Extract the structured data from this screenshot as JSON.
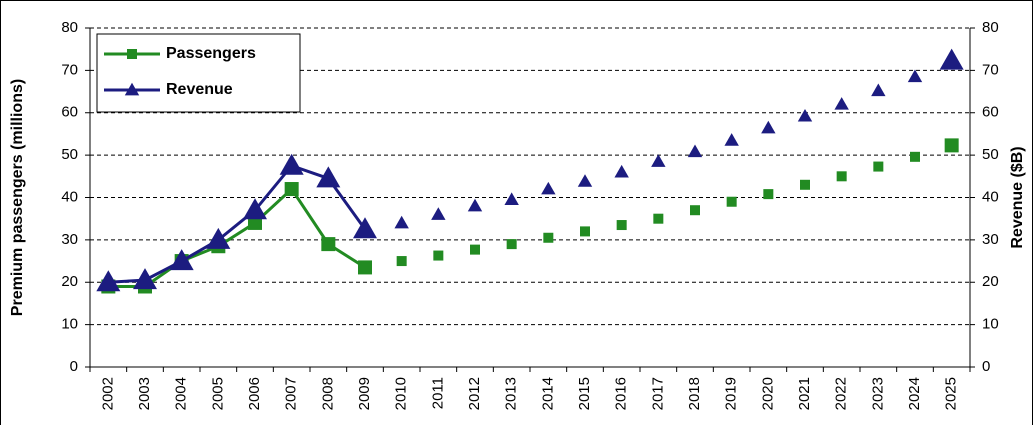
{
  "chart_data": {
    "type": "line",
    "categories": [
      "2002",
      "2003",
      "2004",
      "2005",
      "2006",
      "2007",
      "2008",
      "2009",
      "2010",
      "2011",
      "2012",
      "2013",
      "2014",
      "2015",
      "2016",
      "2017",
      "2018",
      "2019",
      "2020",
      "2021",
      "2022",
      "2023",
      "2024",
      "2025"
    ],
    "series": [
      {
        "name": "Passengers",
        "color": "#228b22",
        "marker": "square",
        "solid_through": "2009",
        "values": [
          19,
          19,
          25,
          28.5,
          34,
          42,
          29,
          23.5,
          25,
          26.3,
          27.7,
          29,
          30.5,
          32,
          33.5,
          35,
          37,
          39,
          40.8,
          43,
          45,
          47.3,
          49.6,
          52.3
        ]
      },
      {
        "name": "Revenue",
        "color": "#1c1c80",
        "marker": "triangle",
        "axis": "y2",
        "solid_through": "2009",
        "values": [
          20,
          20.5,
          25,
          30,
          37,
          47.5,
          44.5,
          32.5,
          34,
          36,
          38,
          39.5,
          42,
          43.8,
          46,
          48.5,
          50.8,
          53.5,
          56.4,
          59.2,
          62,
          65.2,
          68.5,
          72.3
        ]
      }
    ],
    "ylabel": "Premium passengers (millions)",
    "y2label": "Revenue ($B)",
    "ylim": [
      0,
      80
    ],
    "yticks": [
      0,
      10,
      20,
      30,
      40,
      50,
      60,
      70,
      80
    ],
    "y2lim": [
      0,
      80
    ],
    "y2ticks": [
      0,
      10,
      20,
      30,
      40,
      50,
      60,
      70,
      80
    ],
    "grid": true,
    "legend": "upper left"
  }
}
